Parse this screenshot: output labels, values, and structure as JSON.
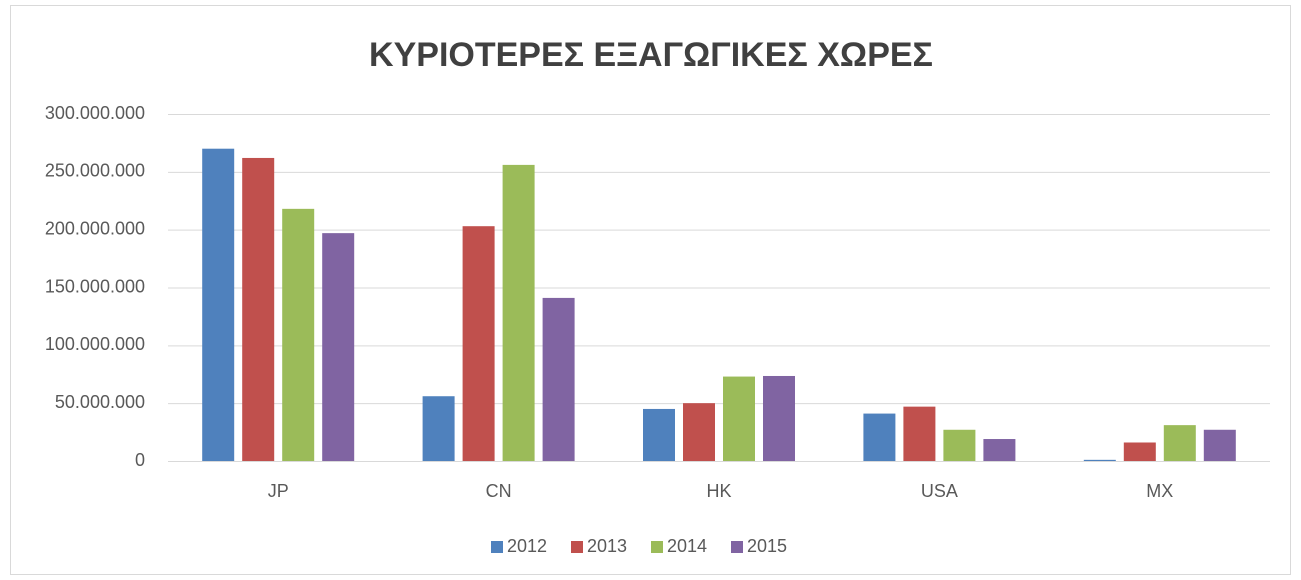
{
  "chart_data": {
    "type": "bar",
    "title": "ΚΥΡΙΟΤΕΡΕΣ ΕΞΑΓΩΓΙΚΕΣ ΧΩΡΕΣ",
    "categories": [
      "JP",
      "CN",
      "HK",
      "USA",
      "MX"
    ],
    "series": [
      {
        "name": "2012",
        "color": "#4f81bd",
        "values": [
          270000000,
          56000000,
          45000000,
          41000000,
          1000000
        ]
      },
      {
        "name": "2013",
        "color": "#c0504d",
        "values": [
          262000000,
          203000000,
          50000000,
          47000000,
          16000000
        ]
      },
      {
        "name": "2014",
        "color": "#9bbb59",
        "values": [
          218000000,
          256000000,
          73000000,
          27000000,
          31000000
        ]
      },
      {
        "name": "2015",
        "color": "#8064a2",
        "values": [
          197000000,
          141000000,
          73500000,
          19000000,
          27000000
        ]
      }
    ],
    "ylim": [
      0,
      300000000
    ],
    "yticks": [
      0,
      {
        "value": 50000000,
        "label": "50.000.000"
      },
      {
        "value": 100000000,
        "label": "100.000.000"
      },
      {
        "value": 150000000,
        "label": "150.000.000"
      },
      {
        "value": 200000000,
        "label": "200.000.000"
      },
      {
        "value": 250000000,
        "label": "250.000.000"
      },
      {
        "value": 300000000,
        "label": "300.000.000"
      }
    ],
    "grid": true,
    "legend": "bottom"
  }
}
